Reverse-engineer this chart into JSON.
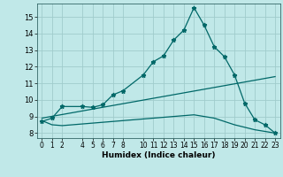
{
  "xlabel": "Humidex (Indice chaleur)",
  "bg_color": "#c0e8e8",
  "grid_color": "#a0cccc",
  "line_color": "#006868",
  "xlim": [
    -0.5,
    23.5
  ],
  "ylim": [
    7.7,
    15.8
  ],
  "xticks": [
    0,
    1,
    2,
    4,
    5,
    6,
    7,
    8,
    10,
    11,
    12,
    13,
    14,
    15,
    16,
    17,
    18,
    19,
    20,
    21,
    22,
    23
  ],
  "yticks": [
    8,
    9,
    10,
    11,
    12,
    13,
    14,
    15
  ],
  "curve1_x": [
    0,
    1,
    2,
    4,
    5,
    6,
    7,
    8,
    10,
    11,
    12,
    13,
    14,
    15,
    16,
    17,
    18,
    19,
    20,
    21,
    22,
    23
  ],
  "curve1_y": [
    8.7,
    8.9,
    9.6,
    9.6,
    9.55,
    9.7,
    10.3,
    10.55,
    11.5,
    12.3,
    12.65,
    13.6,
    14.2,
    15.55,
    14.5,
    13.2,
    12.6,
    11.5,
    9.8,
    8.8,
    8.5,
    8.0
  ],
  "curve2_x": [
    0,
    1,
    2,
    4,
    5,
    6,
    7,
    8,
    10,
    11,
    12,
    13,
    14,
    15,
    16,
    17,
    18,
    19,
    20,
    21,
    22,
    23
  ],
  "curve2_y": [
    8.75,
    8.5,
    8.45,
    8.55,
    8.6,
    8.65,
    8.7,
    8.75,
    8.85,
    8.9,
    8.95,
    9.0,
    9.05,
    9.1,
    9.0,
    8.9,
    8.7,
    8.5,
    8.35,
    8.2,
    8.1,
    8.0
  ],
  "curve3_x": [
    0,
    23
  ],
  "curve3_y": [
    8.9,
    11.4
  ]
}
